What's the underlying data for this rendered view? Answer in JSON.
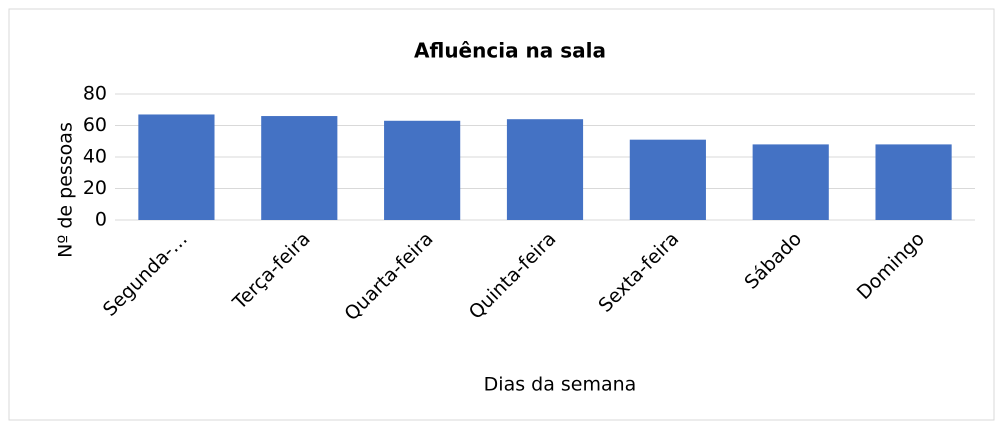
{
  "chart_data": {
    "type": "bar",
    "title": "Afluência na sala",
    "categories": [
      "Segunda-…",
      "Terça-feira",
      "Quarta-feira",
      "Quinta-feira",
      "Sexta-feira",
      "Sábado",
      "Domingo"
    ],
    "values": [
      67,
      66,
      63,
      64,
      51,
      48,
      48
    ],
    "color": "#4472c4",
    "x_label": "Dias da semana",
    "y_label": "Nº de pessoas",
    "ylim": [
      0,
      80
    ],
    "yticks": [
      0,
      20,
      40,
      60,
      80
    ],
    "grid": true
  }
}
